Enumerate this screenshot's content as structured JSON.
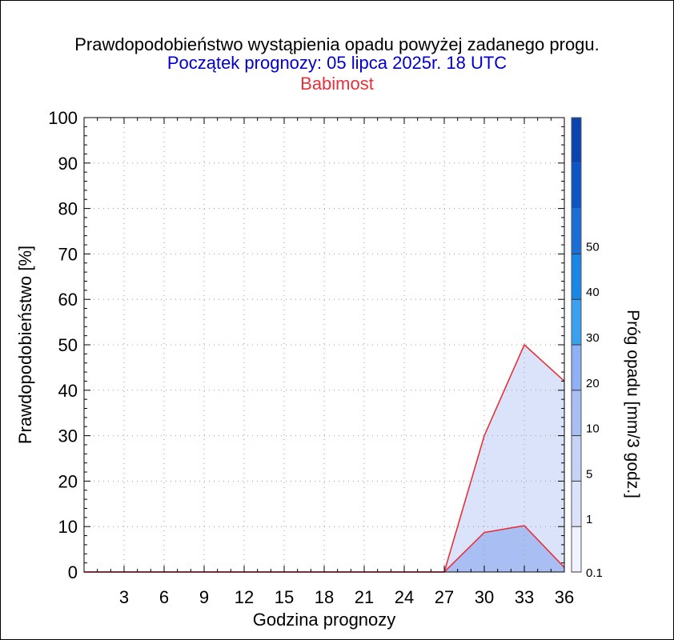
{
  "colors": {
    "title": "#000000",
    "subtitle": "#0000cc",
    "station": "#e8303a",
    "series_line": "#e8303a",
    "fill_low": "#dbe3fa",
    "fill_mid": "#a9bff4"
  },
  "chart_data": {
    "type": "area",
    "title": "Prawdopodobieństwo wystąpienia opadu powyżej zadanego progu.",
    "subtitle": "Początek prognozy: 05 lipca 2025r. 18 UTC",
    "station": "Babimost",
    "xlabel": "Godzina prognozy",
    "ylabel": "Prawdopodobieństwo [%]",
    "xlim": [
      0,
      36
    ],
    "ylim": [
      0,
      100
    ],
    "x_ticks": [
      "3",
      "6",
      "9",
      "12",
      "15",
      "18",
      "21",
      "24",
      "27",
      "30",
      "33",
      "36"
    ],
    "y_ticks": [
      "0",
      "10",
      "20",
      "30",
      "40",
      "50",
      "60",
      "70",
      "80",
      "90",
      "100"
    ],
    "grid": true,
    "x": [
      0,
      3,
      6,
      9,
      12,
      15,
      18,
      21,
      24,
      27,
      30,
      33,
      36
    ],
    "series": [
      {
        "name": "0.1",
        "color": "#dbe3fa",
        "values": [
          0,
          0,
          0,
          0,
          0,
          0,
          0,
          0,
          0,
          0,
          30,
          50,
          42
        ]
      },
      {
        "name": "1",
        "color": "#a9bff4",
        "values": [
          0,
          0,
          0,
          0,
          0,
          0,
          0,
          0,
          0,
          0,
          8.7,
          10.2,
          1
        ]
      }
    ],
    "colorbar": {
      "label": "Próg opadu [mm/3 godz.]",
      "ticks": [
        "0.1",
        "1",
        "5",
        "10",
        "20",
        "30",
        "40",
        "50"
      ],
      "colors": [
        "#f0f3ff",
        "#dbe3fa",
        "#c4d3f6",
        "#a9bff4",
        "#8fb0f5",
        "#3aa0f0",
        "#1a86e6",
        "#1a6fd4",
        "#0b56c4",
        "#0a44b0"
      ]
    }
  }
}
